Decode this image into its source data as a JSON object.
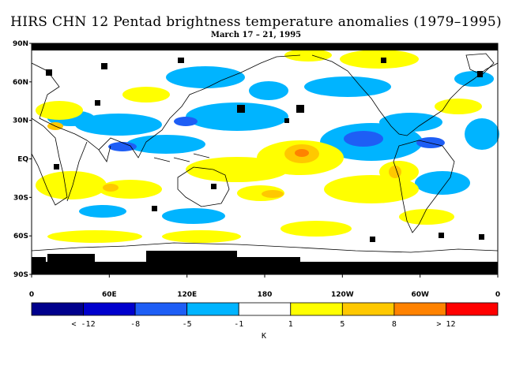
{
  "title": "HIRS CHN 12 Pentad brightness temperature anomalies (1979–1995)",
  "subtitle": "March 17 – 21, 1995",
  "map": {
    "projection": "equirectangular",
    "lon_range": [
      0,
      360
    ],
    "lat_range": [
      -90,
      90
    ],
    "lat_ticks": [
      "90N",
      "60N",
      "30N",
      "EQ",
      "30S",
      "60S",
      "90S"
    ],
    "lon_ticks": [
      "0",
      "60E",
      "120E",
      "180",
      "120W",
      "60W",
      "0"
    ],
    "missing_data_color": "#000000",
    "notable_features": [
      {
        "label": "warm anomaly central Pacific",
        "lon": 205,
        "lat": 5
      },
      {
        "label": "cool anomaly eastern Pacific",
        "lon": 245,
        "lat": 15
      },
      {
        "label": "polar night / missing data Antarctica",
        "lon": 120,
        "lat": -80
      }
    ]
  },
  "colorbar": {
    "unit": "K",
    "colors": [
      "#00008c",
      "#0000cd",
      "#1e5ef5",
      "#00b4ff",
      "#ffffff",
      "#ffff00",
      "#ffc800",
      "#ff8200",
      "#ff0000"
    ],
    "labels": [
      "< -12",
      "-8",
      "-5",
      "-1",
      "1",
      "5",
      "8",
      "> 12"
    ]
  }
}
